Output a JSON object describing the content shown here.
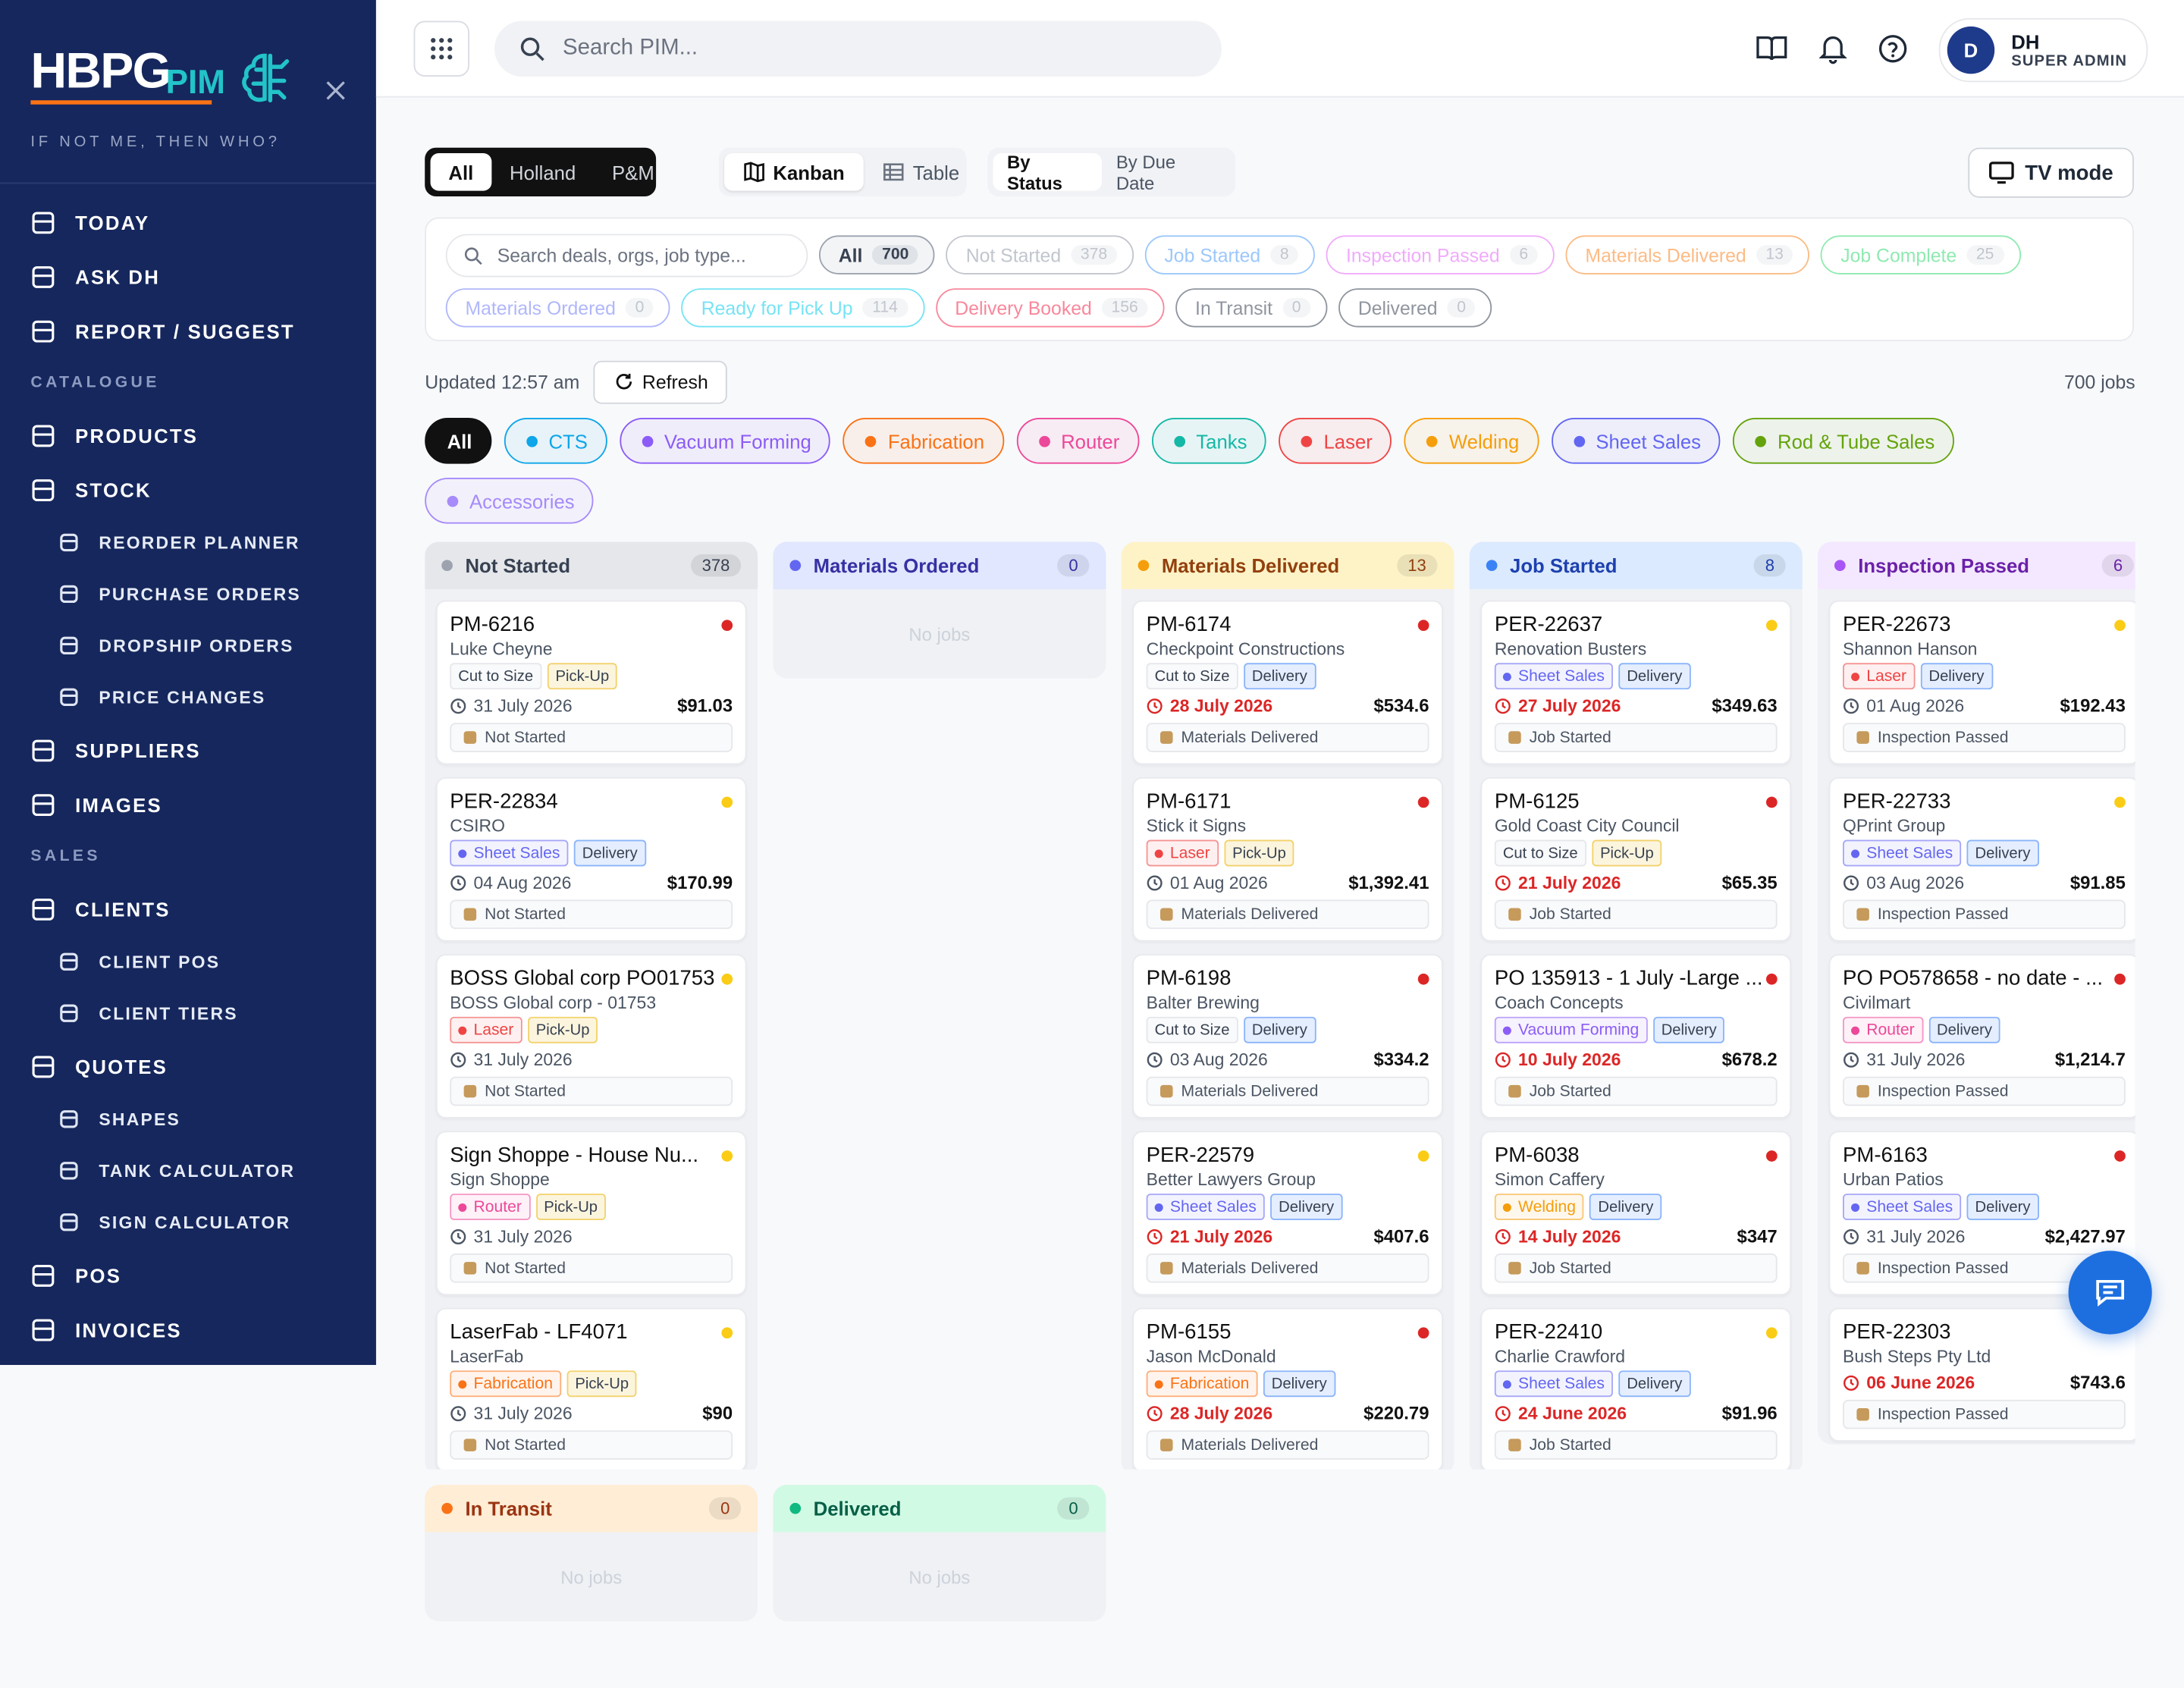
{
  "sidebar": {
    "brand": "HBPG",
    "brand_sub": "PIM",
    "tagline": "IF NOT ME, THEN WHO?",
    "groups": [
      {
        "items": [
          {
            "label": "TODAY"
          },
          {
            "label": "ASK DH"
          },
          {
            "label": "REPORT / SUGGEST"
          }
        ]
      },
      {
        "heading": "CATALOGUE",
        "items": [
          {
            "label": "PRODUCTS"
          },
          {
            "label": "STOCK",
            "children": [
              "REORDER PLANNER",
              "PURCHASE ORDERS",
              "DROPSHIP ORDERS",
              "PRICE CHANGES"
            ]
          },
          {
            "label": "SUPPLIERS"
          },
          {
            "label": "IMAGES"
          }
        ]
      },
      {
        "heading": "SALES",
        "items": [
          {
            "label": "CLIENTS",
            "children": [
              "CLIENT POS",
              "CLIENT TIERS"
            ]
          },
          {
            "label": "QUOTES",
            "children": [
              "SHAPES",
              "TANK CALCULATOR",
              "SIGN CALCULATOR"
            ]
          },
          {
            "label": "POS"
          },
          {
            "label": "INVOICES"
          }
        ]
      }
    ]
  },
  "header": {
    "search_placeholder": "Search PIM...",
    "user": {
      "initial": "D",
      "name": "DH",
      "role": "SUPER ADMIN"
    }
  },
  "toolbar": {
    "regions": {
      "options": [
        "All",
        "Holland",
        "P&M"
      ],
      "active": 0
    },
    "views": {
      "options": [
        "Kanban",
        "Table"
      ],
      "active": 0
    },
    "grouping": {
      "options": [
        "By Status",
        "By Due Date"
      ],
      "active": 0
    },
    "tv_mode": "TV mode"
  },
  "filters": {
    "search_placeholder": "Search deals, orgs, job type...",
    "active": 0,
    "statuses": [
      {
        "label": "All",
        "count": "700",
        "color": "#374151"
      },
      {
        "label": "Not Started",
        "count": "378",
        "color": "#9ca3af"
      },
      {
        "label": "Job Started",
        "count": "8",
        "color": "#60a5fa"
      },
      {
        "label": "Inspection Passed",
        "count": "6",
        "color": "#e879f9"
      },
      {
        "label": "Materials Delivered",
        "count": "13",
        "color": "#fb923c"
      },
      {
        "label": "Job Complete",
        "count": "25",
        "color": "#4ade80"
      },
      {
        "label": "Materials Ordered",
        "count": "0",
        "color": "#818cf8"
      },
      {
        "label": "Ready for Pick Up",
        "count": "114",
        "color": "#22d3ee"
      },
      {
        "label": "Delivery Booked",
        "count": "156",
        "color": "#f43f5e"
      },
      {
        "label": "In Transit",
        "count": "0",
        "color": "#4b5563"
      },
      {
        "label": "Delivered",
        "count": "0",
        "color": "#4b5563"
      }
    ]
  },
  "status_bar": {
    "updated": "Updated 12:57 am",
    "refresh": "Refresh",
    "total": "700 jobs"
  },
  "categories": {
    "active": 0,
    "items": [
      {
        "label": "All"
      },
      {
        "label": "CTS",
        "color": "#0ea5e9"
      },
      {
        "label": "Vacuum Forming",
        "color": "#8b5cf6"
      },
      {
        "label": "Fabrication",
        "color": "#f97316"
      },
      {
        "label": "Router",
        "color": "#ec4899"
      },
      {
        "label": "Tanks",
        "color": "#14b8a6"
      },
      {
        "label": "Laser",
        "color": "#ef4444"
      },
      {
        "label": "Welding",
        "color": "#f59e0b"
      },
      {
        "label": "Sheet Sales",
        "color": "#6366f1"
      },
      {
        "label": "Rod & Tube Sales",
        "color": "#65a30d"
      },
      {
        "label": "Accessories",
        "color": "#a78bfa"
      }
    ]
  },
  "board": {
    "empty_text": "No jobs",
    "columns": [
      {
        "title": "Not Started",
        "count": "378",
        "color": "#9ca3af",
        "bg": "#e5e7eb",
        "text": "#374151",
        "cards": [
          {
            "title": "PM-6216",
            "client": "Luke Cheyne",
            "type": "Cut to Size",
            "method": {
              "label": "Pick-Up",
              "color": "#eab308"
            },
            "date": "31 July 2026",
            "price": "$91.03",
            "status": "Not Started",
            "dot": "#dc2626"
          },
          {
            "title": "PER-22834",
            "client": "CSIRO",
            "type": "Sheet Sales",
            "method": {
              "label": "Delivery",
              "color": "#3b82f6"
            },
            "date": "04 Aug 2026",
            "price": "$170.99",
            "status": "Not Started",
            "dot": "#facc15"
          },
          {
            "title": "BOSS Global corp PO01753",
            "client": "BOSS Global corp - 01753",
            "type": "Laser",
            "method": {
              "label": "Pick-Up",
              "color": "#eab308"
            },
            "date": "31 July 2026",
            "status": "Not Started",
            "dot": "#facc15"
          },
          {
            "title": "Sign Shoppe - House Nu...",
            "client": "Sign Shoppe",
            "type": "Router",
            "method": {
              "label": "Pick-Up",
              "color": "#eab308"
            },
            "date": "31 July 2026",
            "status": "Not Started",
            "dot": "#facc15"
          },
          {
            "title": "LaserFab - LF4071",
            "client": "LaserFab",
            "type": "Fabrication",
            "method": {
              "label": "Pick-Up",
              "color": "#eab308"
            },
            "date": "31 July 2026",
            "price": "$90",
            "status": "Not Started",
            "dot": "#facc15"
          }
        ]
      },
      {
        "title": "Materials Ordered",
        "count": "0",
        "color": "#6366f1",
        "bg": "#e0e7ff",
        "text": "#3730a3",
        "cards": []
      },
      {
        "title": "Materials Delivered",
        "count": "13",
        "color": "#f59e0b",
        "bg": "#fef3c7",
        "text": "#92400e",
        "cards": [
          {
            "title": "PM-6174",
            "client": "Checkpoint Constructions",
            "type": "Cut to Size",
            "method": {
              "label": "Delivery",
              "color": "#3b82f6"
            },
            "date": "28 July 2026",
            "overdue": true,
            "price": "$534.6",
            "status": "Materials Delivered",
            "dot": "#dc2626"
          },
          {
            "title": "PM-6171",
            "client": "Stick it Signs",
            "type": "Laser",
            "method": {
              "label": "Pick-Up",
              "color": "#eab308"
            },
            "date": "01 Aug 2026",
            "price": "$1,392.41",
            "status": "Materials Delivered",
            "dot": "#dc2626"
          },
          {
            "title": "PM-6198",
            "client": "Balter Brewing",
            "type": "Cut to Size",
            "method": {
              "label": "Delivery",
              "color": "#3b82f6"
            },
            "date": "03 Aug 2026",
            "price": "$334.2",
            "status": "Materials Delivered",
            "dot": "#dc2626"
          },
          {
            "title": "PER-22579",
            "client": "Better Lawyers Group",
            "type": "Sheet Sales",
            "method": {
              "label": "Delivery",
              "color": "#3b82f6"
            },
            "date": "21 July 2026",
            "overdue": true,
            "price": "$407.6",
            "status": "Materials Delivered",
            "dot": "#facc15"
          },
          {
            "title": "PM-6155",
            "client": "Jason McDonald",
            "type": "Fabrication",
            "method": {
              "label": "Delivery",
              "color": "#3b82f6"
            },
            "date": "28 July 2026",
            "overdue": true,
            "price": "$220.79",
            "status": "Materials Delivered",
            "dot": "#dc2626"
          }
        ]
      },
      {
        "title": "Job Started",
        "count": "8",
        "color": "#3b82f6",
        "bg": "#dbeafe",
        "text": "#1e40af",
        "cards": [
          {
            "title": "PER-22637",
            "client": "Renovation Busters",
            "type": "Sheet Sales",
            "method": {
              "label": "Delivery",
              "color": "#3b82f6"
            },
            "date": "27 July 2026",
            "overdue": true,
            "price": "$349.63",
            "status": "Job Started",
            "dot": "#facc15"
          },
          {
            "title": "PM-6125",
            "client": "Gold Coast City Council",
            "type": "Cut to Size",
            "method": {
              "label": "Pick-Up",
              "color": "#eab308"
            },
            "date": "21 July 2026",
            "overdue": true,
            "price": "$65.35",
            "status": "Job Started",
            "dot": "#dc2626"
          },
          {
            "title": "PO 135913 - 1 July -Large ...",
            "client": "Coach Concepts",
            "type": "Vacuum Forming",
            "method": {
              "label": "Delivery",
              "color": "#3b82f6"
            },
            "date": "10 July 2026",
            "overdue": true,
            "price": "$678.2",
            "status": "Job Started",
            "dot": "#dc2626"
          },
          {
            "title": "PM-6038",
            "client": "Simon Caffery",
            "type": "Welding",
            "method": {
              "label": "Delivery",
              "color": "#3b82f6"
            },
            "date": "14 July 2026",
            "overdue": true,
            "price": "$347",
            "status": "Job Started",
            "dot": "#dc2626"
          },
          {
            "title": "PER-22410",
            "client": "Charlie Crawford",
            "type": "Sheet Sales",
            "method": {
              "label": "Delivery",
              "color": "#3b82f6"
            },
            "date": "24 June 2026",
            "overdue": true,
            "price": "$91.96",
            "status": "Job Started",
            "dot": "#facc15"
          }
        ]
      },
      {
        "title": "Inspection Passed",
        "count": "6",
        "color": "#a855f7",
        "bg": "#f3e8ff",
        "text": "#6b21a8",
        "cards": [
          {
            "title": "PER-22673",
            "client": "Shannon Hanson",
            "type": "Laser",
            "method": {
              "label": "Delivery",
              "color": "#3b82f6"
            },
            "date": "01 Aug 2026",
            "price": "$192.43",
            "status": "Inspection Passed",
            "dot": "#facc15"
          },
          {
            "title": "PER-22733",
            "client": "QPrint Group",
            "type": "Sheet Sales",
            "method": {
              "label": "Delivery",
              "color": "#3b82f6"
            },
            "date": "03 Aug 2026",
            "price": "$91.85",
            "status": "Inspection Passed",
            "dot": "#facc15"
          },
          {
            "title": "PO PO578658 - no date - ...",
            "client": "Civilmart",
            "type": "Router",
            "method": {
              "label": "Delivery",
              "color": "#3b82f6"
            },
            "date": "31 July 2026",
            "price": "$1,214.7",
            "status": "Inspection Passed",
            "dot": "#dc2626"
          },
          {
            "title": "PM-6163",
            "client": "Urban Patios",
            "type": "Sheet Sales",
            "method": {
              "label": "Delivery",
              "color": "#3b82f6"
            },
            "date": "31 July 2026",
            "price": "$2,427.97",
            "status": "Inspection Passed",
            "dot": "#dc2626"
          },
          {
            "title": "PER-22303",
            "client": "Bush Steps Pty Ltd",
            "date": "06 June 2026",
            "overdue": true,
            "price": "$743.6",
            "status": "Inspection Passed"
          }
        ]
      },
      {
        "title": "In Transit",
        "count": "0",
        "color": "#f97316",
        "bg": "#ffedd5",
        "text": "#9a3412",
        "cards": []
      },
      {
        "title": "Delivered",
        "count": "0",
        "color": "#10b981",
        "bg": "#d1fae5",
        "text": "#065f46",
        "cards": []
      }
    ]
  }
}
